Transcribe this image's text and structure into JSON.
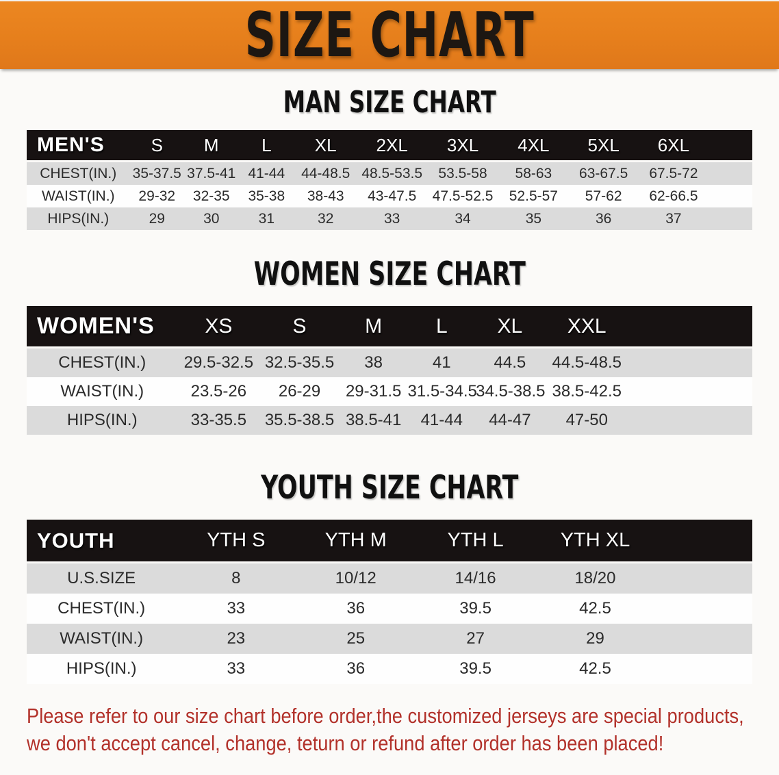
{
  "banner": {
    "title": "SIZE CHART"
  },
  "colors": {
    "banner_orange": "#e67f1c",
    "header_black": "#171212",
    "stripe_gray": "#dbdbdb",
    "disclaimer_red": "#b2312a"
  },
  "sections": [
    {
      "heading": "MAN SIZE CHART",
      "table": {
        "header_label": "MEN'S",
        "columns": [
          "S",
          "M",
          "L",
          "XL",
          "2XL",
          "3XL",
          "4XL",
          "5XL",
          "6XL"
        ],
        "rows": [
          {
            "label": "CHEST(IN.)",
            "values": [
              "35-37.5",
              "37.5-41",
              "41-44",
              "44-48.5",
              "48.5-53.5",
              "53.5-58",
              "58-63",
              "63-67.5",
              "67.5-72"
            ]
          },
          {
            "label": "WAIST(IN.)",
            "values": [
              "29-32",
              "32-35",
              "35-38",
              "38-43",
              "43-47.5",
              "47.5-52.5",
              "52.5-57",
              "57-62",
              "62-66.5"
            ]
          },
          {
            "label": "HIPS(IN.)",
            "values": [
              "29",
              "30",
              "31",
              "32",
              "33",
              "34",
              "35",
              "36",
              "37"
            ]
          }
        ]
      }
    },
    {
      "heading": "WOMEN SIZE CHART",
      "table": {
        "header_label": "WOMEN'S",
        "columns": [
          "XS",
          "S",
          "M",
          "L",
          "XL",
          "XXL"
        ],
        "rows": [
          {
            "label": "CHEST(IN.)",
            "values": [
              "29.5-32.5",
              "32.5-35.5",
              "38",
              "41",
              "44.5",
              "44.5-48.5"
            ]
          },
          {
            "label": "WAIST(IN.)",
            "values": [
              "23.5-26",
              "26-29",
              "29-31.5",
              "31.5-34.5",
              "34.5-38.5",
              "38.5-42.5"
            ]
          },
          {
            "label": "HIPS(IN.)",
            "values": [
              "33-35.5",
              "35.5-38.5",
              "38.5-41",
              "41-44",
              "44-47",
              "47-50"
            ]
          }
        ]
      }
    },
    {
      "heading": "YOUTH SIZE CHART",
      "table": {
        "header_label": "YOUTH",
        "columns": [
          "YTH S",
          "YTH M",
          "YTH L",
          "YTH XL"
        ],
        "rows": [
          {
            "label": "U.S.SIZE",
            "values": [
              "8",
              "10/12",
              "14/16",
              "18/20"
            ]
          },
          {
            "label": "CHEST(IN.)",
            "values": [
              "33",
              "36",
              "39.5",
              "42.5"
            ]
          },
          {
            "label": "WAIST(IN.)",
            "values": [
              "23",
              "25",
              "27",
              "29"
            ]
          },
          {
            "label": "HIPS(IN.)",
            "values": [
              "33",
              "36",
              "39.5",
              "42.5"
            ]
          }
        ]
      }
    }
  ],
  "disclaimer": {
    "line1": "Please refer to our size chart before order,the customized jerseys are special products,",
    "line2": "we don't accept cancel, change, teturn or refund after order has been placed!"
  }
}
